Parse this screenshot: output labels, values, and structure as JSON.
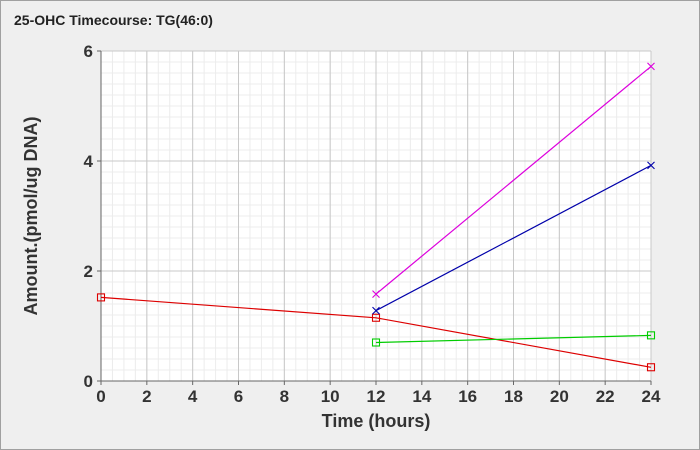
{
  "chart_data": {
    "type": "line",
    "title": "25-OHC Timecourse: TG(46:0)",
    "xlabel": "Time (hours)",
    "ylabel": "Amount.(pmol/ug DNA)",
    "xlim": [
      0,
      24
    ],
    "ylim": [
      0,
      6
    ],
    "xticks": [
      0,
      2,
      4,
      6,
      8,
      10,
      12,
      14,
      16,
      18,
      20,
      22,
      24
    ],
    "yticks": [
      0,
      2,
      4,
      6
    ],
    "grid": true,
    "legend": "none",
    "series": [
      {
        "color": "#dd0000",
        "marker": "square",
        "x": [
          0,
          12,
          24
        ],
        "y": [
          1.52,
          1.15,
          0.25
        ]
      },
      {
        "color": "#00cc00",
        "marker": "square",
        "x": [
          12,
          24
        ],
        "y": [
          0.7,
          0.83
        ]
      },
      {
        "color": "#0000aa",
        "marker": "x",
        "x": [
          12,
          24
        ],
        "y": [
          1.28,
          3.92
        ]
      },
      {
        "color": "#dd00dd",
        "marker": "x",
        "x": [
          12,
          24
        ],
        "y": [
          1.58,
          5.72
        ]
      }
    ]
  }
}
